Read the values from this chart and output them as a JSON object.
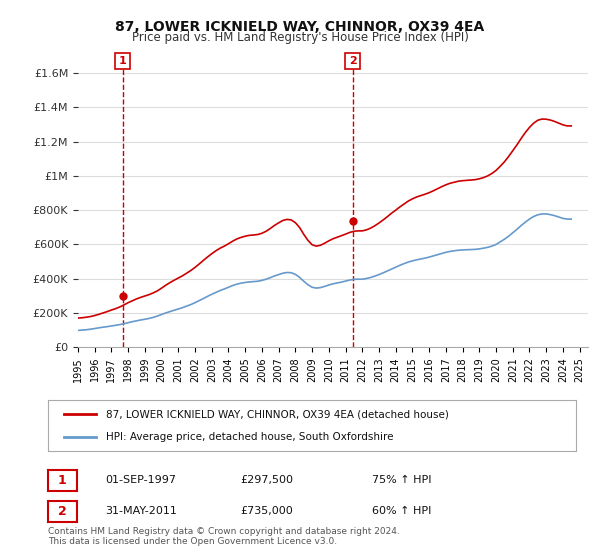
{
  "title": "87, LOWER ICKNIELD WAY, CHINNOR, OX39 4EA",
  "subtitle": "Price paid vs. HM Land Registry's House Price Index (HPI)",
  "legend_line1": "87, LOWER ICKNIELD WAY, CHINNOR, OX39 4EA (detached house)",
  "legend_line2": "HPI: Average price, detached house, South Oxfordshire",
  "sale1_label": "1",
  "sale1_date": "01-SEP-1997",
  "sale1_price": "£297,500",
  "sale1_hpi": "75% ↑ HPI",
  "sale1_year": 1997.67,
  "sale1_value": 297500,
  "sale2_label": "2",
  "sale2_date": "31-MAY-2011",
  "sale2_price": "£735,000",
  "sale2_hpi": "60% ↑ HPI",
  "sale2_year": 2011.42,
  "sale2_value": 735000,
  "footer": "Contains HM Land Registry data © Crown copyright and database right 2024.\nThis data is licensed under the Open Government Licence v3.0.",
  "hpi_color": "#6699cc",
  "price_color": "#cc0000",
  "vline_color": "#cc0000",
  "ylabel_color": "#333333",
  "background_color": "#ffffff",
  "grid_color": "#dddddd",
  "ylim": [
    0,
    1700000
  ],
  "yticks": [
    0,
    200000,
    400000,
    600000,
    800000,
    1000000,
    1200000,
    1400000,
    1600000
  ],
  "xlim_start": 1995.0,
  "xlim_end": 2025.5,
  "hpi_x": [
    1995,
    1995.25,
    1995.5,
    1995.75,
    1996,
    1996.25,
    1996.5,
    1996.75,
    1997,
    1997.25,
    1997.5,
    1997.75,
    1998,
    1998.25,
    1998.5,
    1998.75,
    1999,
    1999.25,
    1999.5,
    1999.75,
    2000,
    2000.25,
    2000.5,
    2000.75,
    2001,
    2001.25,
    2001.5,
    2001.75,
    2002,
    2002.25,
    2002.5,
    2002.75,
    2003,
    2003.25,
    2003.5,
    2003.75,
    2004,
    2004.25,
    2004.5,
    2004.75,
    2005,
    2005.25,
    2005.5,
    2005.75,
    2006,
    2006.25,
    2006.5,
    2006.75,
    2007,
    2007.25,
    2007.5,
    2007.75,
    2008,
    2008.25,
    2008.5,
    2008.75,
    2009,
    2009.25,
    2009.5,
    2009.75,
    2010,
    2010.25,
    2010.5,
    2010.75,
    2011,
    2011.25,
    2011.5,
    2011.75,
    2012,
    2012.25,
    2012.5,
    2012.75,
    2013,
    2013.25,
    2013.5,
    2013.75,
    2014,
    2014.25,
    2014.5,
    2014.75,
    2015,
    2015.25,
    2015.5,
    2015.75,
    2016,
    2016.25,
    2016.5,
    2016.75,
    2017,
    2017.25,
    2017.5,
    2017.75,
    2018,
    2018.25,
    2018.5,
    2018.75,
    2019,
    2019.25,
    2019.5,
    2019.75,
    2020,
    2020.25,
    2020.5,
    2020.75,
    2021,
    2021.25,
    2021.5,
    2021.75,
    2022,
    2022.25,
    2022.5,
    2022.75,
    2023,
    2023.25,
    2023.5,
    2023.75,
    2024,
    2024.25,
    2024.5
  ],
  "hpi_y": [
    98000,
    100000,
    102000,
    105000,
    109000,
    113000,
    117000,
    120000,
    124000,
    128000,
    132000,
    137000,
    143000,
    149000,
    154000,
    159000,
    163000,
    168000,
    174000,
    182000,
    191000,
    200000,
    208000,
    216000,
    223000,
    231000,
    240000,
    249000,
    260000,
    272000,
    284000,
    297000,
    309000,
    320000,
    331000,
    340000,
    350000,
    360000,
    368000,
    374000,
    378000,
    381000,
    383000,
    385000,
    390000,
    397000,
    406000,
    416000,
    424000,
    432000,
    436000,
    435000,
    425000,
    408000,
    385000,
    365000,
    350000,
    345000,
    348000,
    355000,
    363000,
    370000,
    375000,
    380000,
    386000,
    392000,
    396000,
    397000,
    397000,
    401000,
    407000,
    415000,
    424000,
    434000,
    445000,
    456000,
    467000,
    478000,
    488000,
    497000,
    504000,
    510000,
    515000,
    520000,
    526000,
    533000,
    540000,
    547000,
    554000,
    559000,
    563000,
    566000,
    568000,
    569000,
    570000,
    571000,
    574000,
    578000,
    583000,
    590000,
    600000,
    615000,
    630000,
    648000,
    668000,
    688000,
    710000,
    730000,
    748000,
    763000,
    773000,
    778000,
    778000,
    774000,
    768000,
    760000,
    752000,
    748000,
    748000
  ],
  "price_x": [
    1995,
    1995.25,
    1995.5,
    1995.75,
    1996,
    1996.25,
    1996.5,
    1996.75,
    1997,
    1997.25,
    1997.5,
    1997.75,
    1998,
    1998.25,
    1998.5,
    1998.75,
    1999,
    1999.25,
    1999.5,
    1999.75,
    2000,
    2000.25,
    2000.5,
    2000.75,
    2001,
    2001.25,
    2001.5,
    2001.75,
    2002,
    2002.25,
    2002.5,
    2002.75,
    2003,
    2003.25,
    2003.5,
    2003.75,
    2004,
    2004.25,
    2004.5,
    2004.75,
    2005,
    2005.25,
    2005.5,
    2005.75,
    2006,
    2006.25,
    2006.5,
    2006.75,
    2007,
    2007.25,
    2007.5,
    2007.75,
    2008,
    2008.25,
    2008.5,
    2008.75,
    2009,
    2009.25,
    2009.5,
    2009.75,
    2010,
    2010.25,
    2010.5,
    2010.75,
    2011,
    2011.25,
    2011.5,
    2011.75,
    2012,
    2012.25,
    2012.5,
    2012.75,
    2013,
    2013.25,
    2013.5,
    2013.75,
    2014,
    2014.25,
    2014.5,
    2014.75,
    2015,
    2015.25,
    2015.5,
    2015.75,
    2016,
    2016.25,
    2016.5,
    2016.75,
    2017,
    2017.25,
    2017.5,
    2017.75,
    2018,
    2018.25,
    2018.5,
    2018.75,
    2019,
    2019.25,
    2019.5,
    2019.75,
    2020,
    2020.25,
    2020.5,
    2020.75,
    2021,
    2021.25,
    2021.5,
    2021.75,
    2022,
    2022.25,
    2022.5,
    2022.75,
    2023,
    2023.25,
    2023.5,
    2023.75,
    2024,
    2024.25,
    2024.5
  ],
  "price_y": [
    170000,
    172000,
    175000,
    179000,
    185000,
    192000,
    200000,
    208000,
    217000,
    225000,
    235000,
    247000,
    260000,
    271000,
    282000,
    291000,
    299000,
    307000,
    317000,
    329000,
    345000,
    362000,
    377000,
    391000,
    404000,
    417000,
    432000,
    448000,
    466000,
    486000,
    507000,
    527000,
    546000,
    563000,
    578000,
    590000,
    604000,
    619000,
    632000,
    641000,
    648000,
    653000,
    655000,
    658000,
    665000,
    677000,
    693000,
    711000,
    726000,
    740000,
    746000,
    743000,
    727000,
    699000,
    659000,
    624000,
    598000,
    590000,
    595000,
    607000,
    621000,
    633000,
    642000,
    651000,
    660000,
    670000,
    677000,
    679000,
    679000,
    685000,
    695000,
    709000,
    725000,
    743000,
    762000,
    782000,
    800000,
    819000,
    836000,
    853000,
    866000,
    877000,
    885000,
    893000,
    902000,
    913000,
    925000,
    937000,
    948000,
    957000,
    963000,
    969000,
    972000,
    974000,
    976000,
    978000,
    983000,
    990000,
    1000000,
    1014000,
    1032000,
    1056000,
    1082000,
    1113000,
    1147000,
    1181000,
    1218000,
    1253000,
    1283000,
    1308000,
    1325000,
    1332000,
    1331000,
    1326000,
    1318000,
    1308000,
    1298000,
    1292000,
    1292000
  ]
}
